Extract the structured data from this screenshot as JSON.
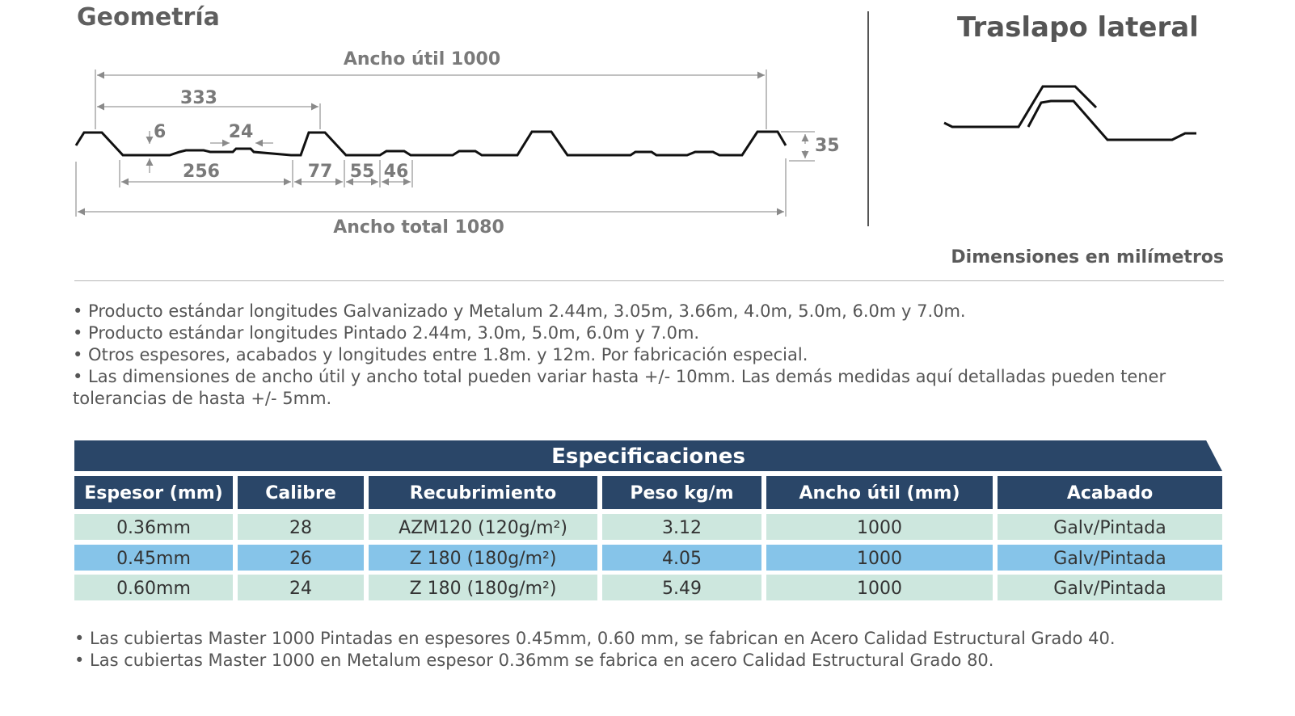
{
  "geometry": {
    "title": "Geometría",
    "dims": {
      "ancho_util": "Ancho útil 1000",
      "d333": "333",
      "d6": "6",
      "d24": "24",
      "d256": "256",
      "d77": "77",
      "d55": "55",
      "d46": "46",
      "d35": "35",
      "ancho_total": "Ancho total 1080"
    }
  },
  "lap": {
    "title": "Traslapo lateral"
  },
  "units_note": "Dimensiones en milímetros",
  "notes": [
    "• Producto estándar longitudes Galvanizado y Metalum 2.44m, 3.05m, 3.66m, 4.0m, 5.0m, 6.0m y 7.0m.",
    "• Producto estándar longitudes Pintado 2.44m, 3.0m, 5.0m, 6.0m y 7.0m.",
    "• Otros espesores, acabados y longitudes entre 1.8m. y 12m. Por fabricación especial.",
    "• Las dimensiones de ancho útil y ancho total pueden variar hasta +/- 10mm. Las demás medidas aquí detalladas pueden tener tolerancias de hasta +/- 5mm."
  ],
  "specs": {
    "title": "Especificaciones",
    "headers": [
      "Espesor (mm)",
      "Calibre",
      "Recubrimiento",
      "Peso kg/m",
      "Ancho útil (mm)",
      "Acabado"
    ],
    "rows": [
      [
        "0.36mm",
        "28",
        "AZM120 (120g/m²)",
        "3.12",
        "1000",
        "Galv/Pintada"
      ],
      [
        "0.45mm",
        "26",
        "Z 180 (180g/m²)",
        "4.05",
        "1000",
        "Galv/Pintada"
      ],
      [
        "0.60mm",
        "24",
        "Z 180 (180g/m²)",
        "5.49",
        "1000",
        "Galv/Pintada"
      ]
    ],
    "colors": {
      "header": "#2a4668",
      "row_mint": "#cde7de",
      "row_blue": "#86c4e9"
    }
  },
  "footer": [
    "• Las cubiertas Master 1000 Pintadas en espesores 0.45mm, 0.60 mm, se fabrican en Acero Calidad Estructural Grado 40.",
    "• Las cubiertas Master 1000 en Metalum espesor 0.36mm se fabrica en acero Calidad Estructural Grado 80."
  ]
}
